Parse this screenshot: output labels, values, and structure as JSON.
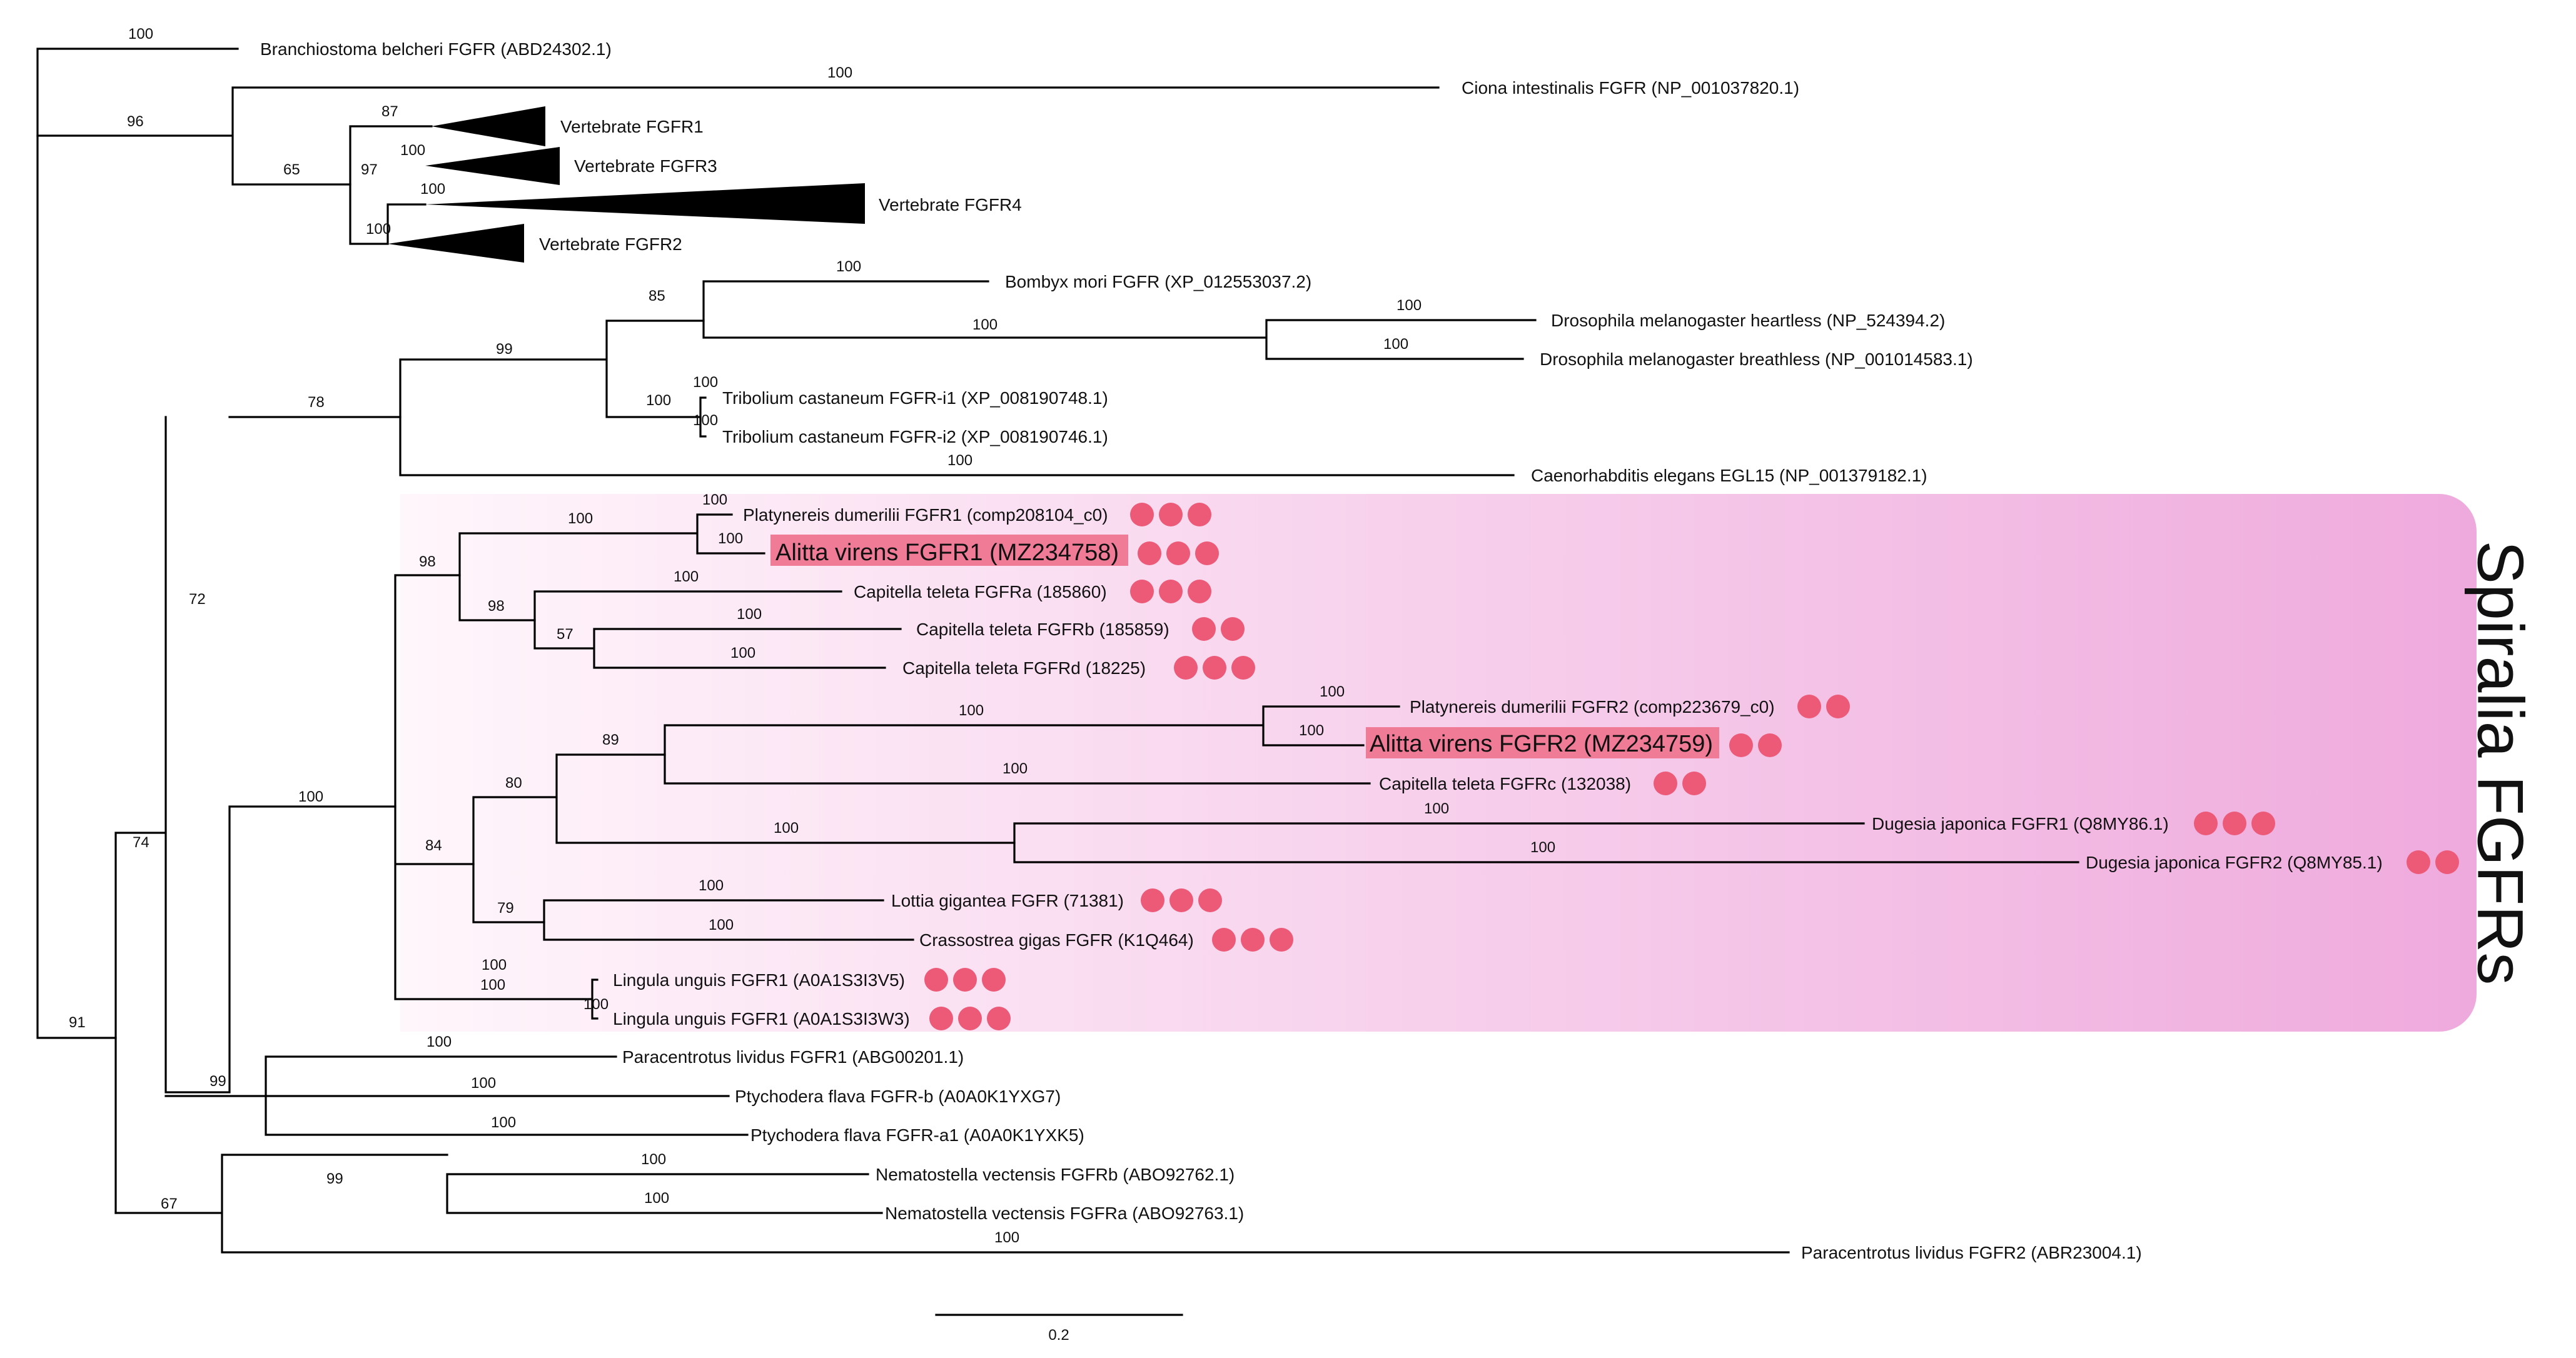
{
  "figure": {
    "type": "phylogenetic_tree",
    "highlight_group_label": "Spiralia FGFRs",
    "scale_bar_label": "0.2",
    "colors": {
      "dot": "#ec5a78",
      "highlight": "#f07b96",
      "band_start": "#fff6fb",
      "band_end": "#efaadd"
    }
  },
  "taxa": [
    {
      "id": "bbel",
      "label": "Branchiostoma belcheri FGFR (ABD24302.1)"
    },
    {
      "id": "cint",
      "label": "Ciona intestinalis FGFR (NP_001037820.1)"
    },
    {
      "id": "vf1",
      "label": "Vertebrate FGFR1",
      "collapsed": true
    },
    {
      "id": "vf3",
      "label": "Vertebrate FGFR3",
      "collapsed": true
    },
    {
      "id": "vf4",
      "label": "Vertebrate FGFR4",
      "collapsed": true
    },
    {
      "id": "vf2",
      "label": "Vertebrate FGFR2",
      "collapsed": true
    },
    {
      "id": "bmor",
      "label": "Bombyx mori FGFR (XP_012553037.2)"
    },
    {
      "id": "dhea",
      "label": "Drosophila melanogaster heartless (NP_524394.2)"
    },
    {
      "id": "dbre",
      "label": "Drosophila melanogaster breathless (NP_001014583.1)"
    },
    {
      "id": "tri1",
      "label": "Tribolium castaneum FGFR-i1 (XP_008190748.1)"
    },
    {
      "id": "tri2",
      "label": "Tribolium castaneum FGFR-i2 (XP_008190746.1)"
    },
    {
      "id": "cele",
      "label": "Caenorhabditis elegans EGL15 (NP_001379182.1)"
    },
    {
      "id": "pdu1",
      "label": "Platynereis dumerilii FGFR1 (comp208104_c0)",
      "dots": 3
    },
    {
      "id": "avi1",
      "label": "Alitta virens FGFR1 (MZ234758)",
      "dots": 3,
      "highlight": true
    },
    {
      "id": "ctea",
      "label": "Capitella teleta FGFRa (185860)",
      "dots": 3
    },
    {
      "id": "cteb",
      "label": "Capitella teleta FGFRb (185859)",
      "dots": 2
    },
    {
      "id": "cted",
      "label": "Capitella teleta FGFRd (18225)",
      "dots": 3
    },
    {
      "id": "pdu2",
      "label": "Platynereis dumerilii FGFR2 (comp223679_c0)",
      "dots": 2
    },
    {
      "id": "avi2",
      "label": "Alitta virens FGFR2 (MZ234759)",
      "dots": 2,
      "highlight": true
    },
    {
      "id": "ctec",
      "label": "Capitella teleta FGFRc (132038)",
      "dots": 2
    },
    {
      "id": "dja1",
      "label": "Dugesia japonica FGFR1 (Q8MY86.1)",
      "dots": 3
    },
    {
      "id": "dja2",
      "label": "Dugesia japonica FGFR2 (Q8MY85.1)",
      "dots": 2
    },
    {
      "id": "lgig",
      "label": "Lottia gigantea FGFR (71381)",
      "dots": 3
    },
    {
      "id": "cgig",
      "label": "Crassostrea gigas FGFR (K1Q464)",
      "dots": 3
    },
    {
      "id": "lun1",
      "label": "Lingula unguis FGFR1 (A0A1S3I3V5)",
      "dots": 3
    },
    {
      "id": "lun2",
      "label": "Lingula unguis FGFR1 (A0A1S3I3W3)",
      "dots": 3
    },
    {
      "id": "pli1",
      "label": "Paracentrotus lividus FGFR1 (ABG00201.1)"
    },
    {
      "id": "pflb",
      "label": "Ptychodera flava FGFR-b (A0A0K1YXG7)"
    },
    {
      "id": "pfla",
      "label": "Ptychodera flava FGFR-a1 (A0A0K1YXK5)"
    },
    {
      "id": "nveb",
      "label": "Nematostella vectensis FGFRb (ABO92762.1)"
    },
    {
      "id": "nvea",
      "label": "Nematostella vectensis FGFRa (ABO92763.1)"
    },
    {
      "id": "pli2",
      "label": "Paracentrotus lividus FGFR2 (ABR23004.1)"
    }
  ],
  "support_values": [
    "100",
    "100",
    "96",
    "87",
    "65",
    "97",
    "100",
    "100",
    "100",
    "100",
    "85",
    "100",
    "100",
    "100",
    "99",
    "100",
    "100",
    "78",
    "100",
    "100",
    "100",
    "100",
    "98",
    "98",
    "100",
    "57",
    "100",
    "100",
    "100",
    "100",
    "89",
    "100",
    "80",
    "100",
    "100",
    "100",
    "84",
    "79",
    "100",
    "100",
    "100",
    "100",
    "100",
    "72",
    "100",
    "99",
    "100",
    "100",
    "74",
    "100",
    "99",
    "100",
    "100",
    "67",
    "100",
    "91"
  ]
}
